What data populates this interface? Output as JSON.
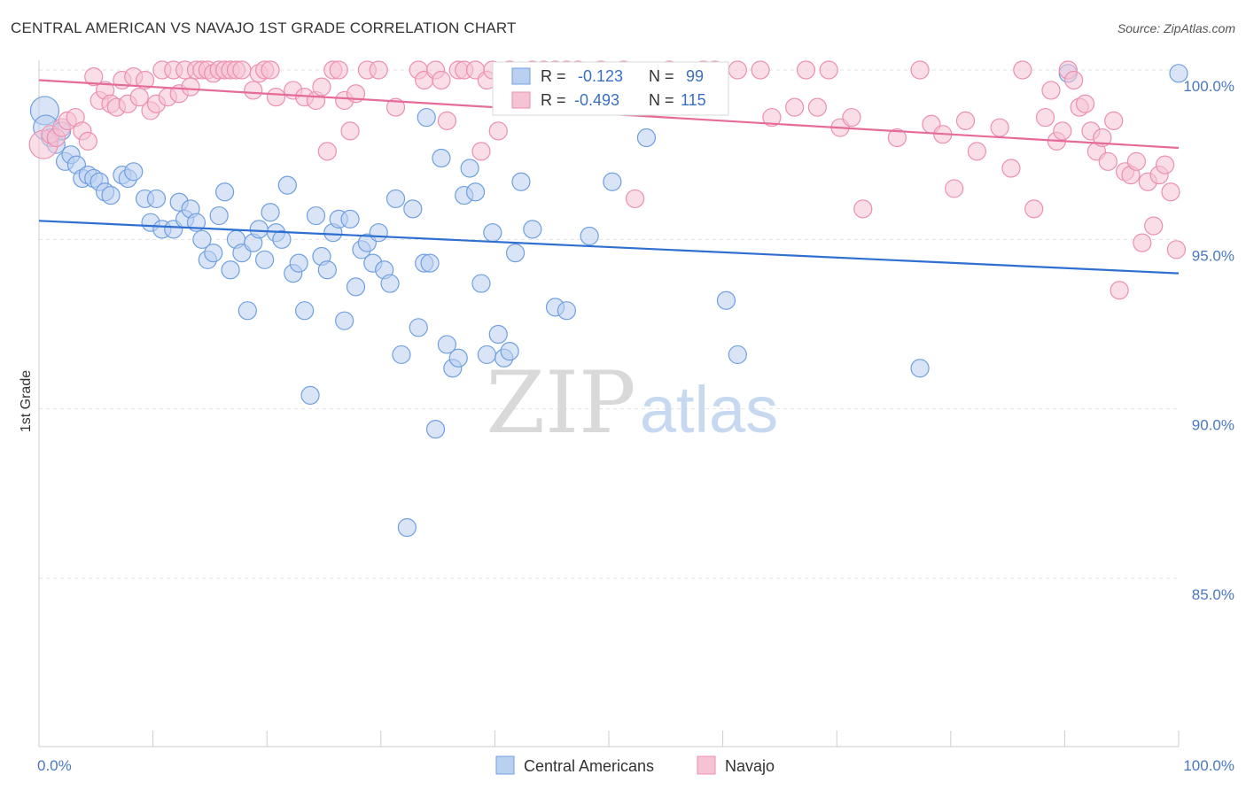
{
  "title": "CENTRAL AMERICAN VS NAVAJO 1ST GRADE CORRELATION CHART",
  "source": "Source: ZipAtlas.com",
  "watermark": {
    "zip": "ZIP",
    "atlas": "atlas"
  },
  "chart_data": {
    "type": "scatter",
    "xlabel": "",
    "ylabel": "1st Grade",
    "xlim": [
      0,
      100
    ],
    "ylim": [
      80.5,
      100.8
    ],
    "x_tick_labels": [
      "0.0%",
      "100.0%"
    ],
    "y_ticks": [
      {
        "value": 100,
        "label": "100.0%"
      },
      {
        "value": 95,
        "label": "95.0%"
      },
      {
        "value": 90,
        "label": "90.0%"
      },
      {
        "value": 85,
        "label": "85.0%"
      }
    ],
    "grid": true,
    "legend_position": "bottom-center",
    "stats": [
      {
        "r_label": "R =",
        "r_value": "-0.123",
        "n_label": "N =",
        "n_value": "99"
      },
      {
        "r_label": "R =",
        "r_value": "-0.493",
        "n_label": "N =",
        "n_value": "115"
      }
    ],
    "series": [
      {
        "name": "Central Americans",
        "color": "#6f9fe0",
        "fill": "#b9d0f1",
        "trend": {
          "x0": 0,
          "y0": 95.55,
          "x1": 100,
          "y1": 94.0
        },
        "points": [
          [
            0.5,
            98.8,
            16
          ],
          [
            0.6,
            98.3,
            14
          ],
          [
            1.0,
            98.0,
            10
          ],
          [
            1.5,
            97.8,
            10
          ],
          [
            2.0,
            98.2,
            10
          ],
          [
            2.3,
            97.3,
            10
          ],
          [
            2.8,
            97.5,
            10
          ],
          [
            3.3,
            97.2,
            10
          ],
          [
            3.8,
            96.8,
            10
          ],
          [
            4.3,
            96.9,
            10
          ],
          [
            4.8,
            96.8,
            10
          ],
          [
            5.3,
            96.7,
            10
          ],
          [
            5.8,
            96.4,
            10
          ],
          [
            6.3,
            96.3,
            10
          ],
          [
            7.3,
            96.9,
            10
          ],
          [
            7.8,
            96.8,
            10
          ],
          [
            8.3,
            97.0,
            10
          ],
          [
            9.3,
            96.2,
            10
          ],
          [
            9.8,
            95.5,
            10
          ],
          [
            10.3,
            96.2,
            10
          ],
          [
            10.8,
            95.3,
            10
          ],
          [
            11.8,
            95.3,
            10
          ],
          [
            12.3,
            96.1,
            10
          ],
          [
            12.8,
            95.6,
            10
          ],
          [
            13.3,
            95.9,
            10
          ],
          [
            13.8,
            95.5,
            10
          ],
          [
            14.3,
            95.0,
            10
          ],
          [
            14.8,
            94.4,
            10
          ],
          [
            15.3,
            94.6,
            10
          ],
          [
            15.8,
            95.7,
            10
          ],
          [
            16.3,
            96.4,
            10
          ],
          [
            16.8,
            94.1,
            10
          ],
          [
            17.3,
            95.0,
            10
          ],
          [
            17.8,
            94.6,
            10
          ],
          [
            18.3,
            92.9,
            10
          ],
          [
            18.8,
            94.9,
            10
          ],
          [
            19.3,
            95.3,
            10
          ],
          [
            19.8,
            94.4,
            10
          ],
          [
            20.3,
            95.8,
            10
          ],
          [
            20.8,
            95.2,
            10
          ],
          [
            21.3,
            95.0,
            10
          ],
          [
            21.8,
            96.6,
            10
          ],
          [
            22.3,
            94.0,
            10
          ],
          [
            22.8,
            94.3,
            10
          ],
          [
            23.3,
            92.9,
            10
          ],
          [
            23.8,
            90.4,
            10
          ],
          [
            24.3,
            95.7,
            10
          ],
          [
            24.8,
            94.5,
            10
          ],
          [
            25.3,
            94.1,
            10
          ],
          [
            25.8,
            95.2,
            10
          ],
          [
            26.3,
            95.6,
            10
          ],
          [
            26.8,
            92.6,
            10
          ],
          [
            27.3,
            95.6,
            10
          ],
          [
            27.8,
            93.6,
            10
          ],
          [
            28.3,
            94.7,
            10
          ],
          [
            28.8,
            94.9,
            10
          ],
          [
            29.3,
            94.3,
            10
          ],
          [
            29.8,
            95.2,
            10
          ],
          [
            30.3,
            94.1,
            10
          ],
          [
            30.8,
            93.7,
            10
          ],
          [
            31.3,
            96.2,
            10
          ],
          [
            31.8,
            91.6,
            10
          ],
          [
            32.3,
            86.5,
            10
          ],
          [
            32.8,
            95.9,
            10
          ],
          [
            33.3,
            92.4,
            10
          ],
          [
            33.8,
            94.3,
            10
          ],
          [
            34.3,
            94.3,
            10
          ],
          [
            34.8,
            89.4,
            10
          ],
          [
            35.3,
            97.4,
            10
          ],
          [
            35.8,
            91.9,
            10
          ],
          [
            36.3,
            91.2,
            10
          ],
          [
            36.8,
            91.5,
            10
          ],
          [
            37.3,
            96.3,
            10
          ],
          [
            37.8,
            97.1,
            10
          ],
          [
            38.3,
            96.4,
            10
          ],
          [
            38.8,
            93.7,
            10
          ],
          [
            39.3,
            91.6,
            10
          ],
          [
            39.8,
            95.2,
            10
          ],
          [
            40.3,
            92.2,
            10
          ],
          [
            40.8,
            91.5,
            10
          ],
          [
            41.3,
            91.7,
            10
          ],
          [
            41.8,
            94.6,
            10
          ],
          [
            42.3,
            96.7,
            10
          ],
          [
            43.3,
            95.3,
            10
          ],
          [
            45.3,
            93.0,
            10
          ],
          [
            46.3,
            92.9,
            10
          ],
          [
            48.3,
            95.1,
            10
          ],
          [
            48.3,
            99.9,
            10
          ],
          [
            50.3,
            96.7,
            10
          ],
          [
            52.3,
            99.9,
            10
          ],
          [
            53.3,
            98.0,
            10
          ],
          [
            57.3,
            99.9,
            10
          ],
          [
            60.3,
            93.2,
            10
          ],
          [
            61.3,
            91.6,
            10
          ],
          [
            77.3,
            91.2,
            10
          ],
          [
            90.3,
            99.9,
            10
          ],
          [
            100.0,
            99.9,
            10
          ],
          [
            34.0,
            98.6,
            10
          ],
          [
            43.0,
            99.7,
            10
          ]
        ]
      },
      {
        "name": "Navajo",
        "color": "#ec8fb0",
        "fill": "#f6c3d4",
        "trend": {
          "x0": 0,
          "y0": 99.7,
          "x1": 100,
          "y1": 97.7
        },
        "points": [
          [
            0.4,
            97.8,
            16
          ],
          [
            1.0,
            98.1,
            10
          ],
          [
            1.5,
            98.0,
            10
          ],
          [
            2.0,
            98.3,
            10
          ],
          [
            2.5,
            98.5,
            10
          ],
          [
            3.2,
            98.6,
            10
          ],
          [
            3.8,
            98.2,
            10
          ],
          [
            4.3,
            97.9,
            10
          ],
          [
            4.8,
            99.8,
            10
          ],
          [
            5.3,
            99.1,
            10
          ],
          [
            5.8,
            99.4,
            10
          ],
          [
            6.3,
            99.0,
            10
          ],
          [
            6.8,
            98.9,
            10
          ],
          [
            7.3,
            99.7,
            10
          ],
          [
            7.8,
            99.0,
            10
          ],
          [
            8.3,
            99.8,
            10
          ],
          [
            8.8,
            99.2,
            10
          ],
          [
            9.3,
            99.7,
            10
          ],
          [
            9.8,
            98.8,
            10
          ],
          [
            10.3,
            99.0,
            10
          ],
          [
            10.8,
            100.0,
            10
          ],
          [
            11.3,
            99.2,
            10
          ],
          [
            11.8,
            100.0,
            10
          ],
          [
            12.3,
            99.3,
            10
          ],
          [
            12.8,
            100.0,
            10
          ],
          [
            13.3,
            99.5,
            10
          ],
          [
            13.8,
            100.0,
            10
          ],
          [
            14.3,
            100.0,
            10
          ],
          [
            14.8,
            100.0,
            10
          ],
          [
            15.3,
            99.9,
            10
          ],
          [
            15.8,
            100.0,
            10
          ],
          [
            16.3,
            100.0,
            10
          ],
          [
            16.8,
            100.0,
            10
          ],
          [
            17.3,
            100.0,
            10
          ],
          [
            17.8,
            100.0,
            10
          ],
          [
            18.8,
            99.4,
            10
          ],
          [
            19.3,
            99.9,
            10
          ],
          [
            19.8,
            100.0,
            10
          ],
          [
            20.3,
            100.0,
            10
          ],
          [
            20.8,
            99.2,
            10
          ],
          [
            22.3,
            99.4,
            10
          ],
          [
            23.3,
            99.2,
            10
          ],
          [
            24.3,
            99.1,
            10
          ],
          [
            24.8,
            99.5,
            10
          ],
          [
            25.3,
            97.6,
            10
          ],
          [
            25.8,
            100.0,
            10
          ],
          [
            26.3,
            100.0,
            10
          ],
          [
            26.8,
            99.1,
            10
          ],
          [
            27.3,
            98.2,
            10
          ],
          [
            27.8,
            99.3,
            10
          ],
          [
            28.8,
            100.0,
            10
          ],
          [
            29.8,
            100.0,
            10
          ],
          [
            31.3,
            98.9,
            10
          ],
          [
            33.3,
            100.0,
            10
          ],
          [
            33.8,
            99.7,
            10
          ],
          [
            34.8,
            100.0,
            10
          ],
          [
            35.3,
            99.7,
            10
          ],
          [
            35.8,
            98.5,
            10
          ],
          [
            36.8,
            100.0,
            10
          ],
          [
            37.3,
            100.0,
            10
          ],
          [
            38.3,
            100.0,
            10
          ],
          [
            38.8,
            97.6,
            10
          ],
          [
            39.3,
            99.7,
            10
          ],
          [
            39.8,
            100.0,
            10
          ],
          [
            40.3,
            98.2,
            10
          ],
          [
            41.3,
            100.0,
            10
          ],
          [
            43.3,
            100.0,
            10
          ],
          [
            44.3,
            100.0,
            10
          ],
          [
            45.3,
            100.0,
            10
          ],
          [
            46.3,
            100.0,
            10
          ],
          [
            47.3,
            100.0,
            10
          ],
          [
            49.3,
            100.0,
            10
          ],
          [
            51.3,
            100.0,
            10
          ],
          [
            52.3,
            96.2,
            10
          ],
          [
            55.3,
            100.0,
            10
          ],
          [
            58.3,
            100.0,
            10
          ],
          [
            59.3,
            100.0,
            10
          ],
          [
            61.3,
            100.0,
            10
          ],
          [
            63.3,
            100.0,
            10
          ],
          [
            64.3,
            98.6,
            10
          ],
          [
            66.3,
            98.9,
            10
          ],
          [
            67.3,
            100.0,
            10
          ],
          [
            68.3,
            98.9,
            10
          ],
          [
            69.3,
            100.0,
            10
          ],
          [
            70.3,
            98.3,
            10
          ],
          [
            71.3,
            98.6,
            10
          ],
          [
            72.3,
            95.9,
            10
          ],
          [
            75.3,
            98.0,
            10
          ],
          [
            77.3,
            100.0,
            10
          ],
          [
            78.3,
            98.4,
            10
          ],
          [
            79.3,
            98.1,
            10
          ],
          [
            80.3,
            96.5,
            10
          ],
          [
            81.3,
            98.5,
            10
          ],
          [
            82.3,
            97.6,
            10
          ],
          [
            84.3,
            98.3,
            10
          ],
          [
            85.3,
            97.1,
            10
          ],
          [
            86.3,
            100.0,
            10
          ],
          [
            87.3,
            95.9,
            10
          ],
          [
            88.3,
            98.6,
            10
          ],
          [
            88.8,
            99.4,
            10
          ],
          [
            89.3,
            97.9,
            10
          ],
          [
            89.8,
            98.2,
            10
          ],
          [
            90.3,
            100.0,
            10
          ],
          [
            90.8,
            99.7,
            10
          ],
          [
            91.3,
            98.9,
            10
          ],
          [
            91.8,
            99.0,
            10
          ],
          [
            92.3,
            98.2,
            10
          ],
          [
            92.8,
            97.6,
            10
          ],
          [
            93.3,
            98.0,
            10
          ],
          [
            93.8,
            97.3,
            10
          ],
          [
            94.3,
            98.5,
            10
          ],
          [
            94.8,
            93.5,
            10
          ],
          [
            95.3,
            97.0,
            10
          ],
          [
            95.8,
            96.9,
            10
          ],
          [
            96.3,
            97.3,
            10
          ],
          [
            96.8,
            94.9,
            10
          ],
          [
            97.3,
            96.7,
            10
          ],
          [
            97.8,
            95.4,
            10
          ],
          [
            98.3,
            96.9,
            10
          ],
          [
            98.8,
            97.2,
            10
          ],
          [
            99.3,
            96.4,
            10
          ],
          [
            99.8,
            94.7,
            10
          ]
        ]
      }
    ]
  }
}
